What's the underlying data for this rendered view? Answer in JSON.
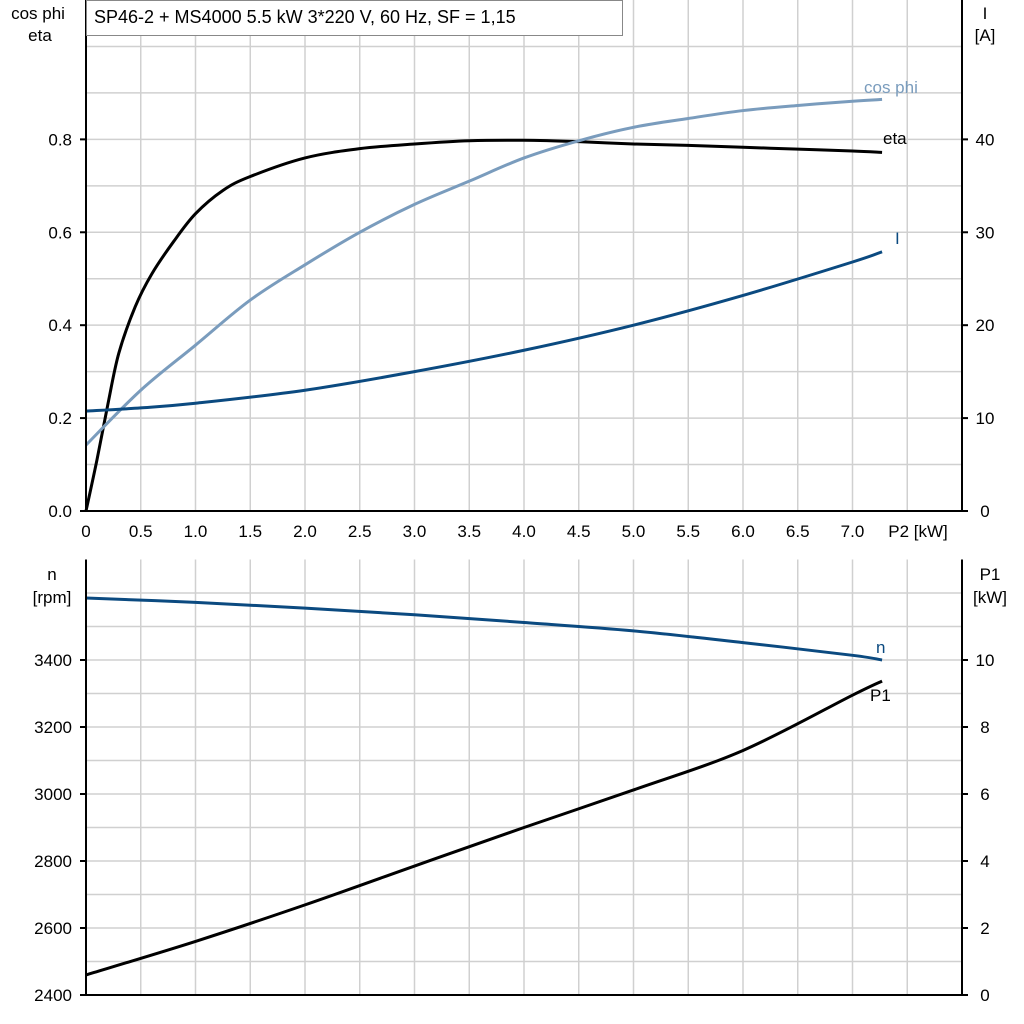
{
  "title": "SP46-2 + MS4000   5.5 kW   3*220 V, 60 Hz, SF = 1,15",
  "colors": {
    "eta": "#000000",
    "cos_phi": "#7a9cbd",
    "I": "#0b4a80",
    "n": "#0b4a80",
    "P1": "#000000",
    "grid": "#d0d0d0"
  },
  "chart_data": [
    {
      "type": "line",
      "xlabel": "P2 [kW]",
      "ylabel_left": [
        "cos phi",
        "eta"
      ],
      "ylabel_right": [
        "I",
        "[A]"
      ],
      "xlim": [
        0,
        8
      ],
      "ylim_left": [
        0,
        1.1
      ],
      "ylim_right": [
        0,
        55
      ],
      "grid": true,
      "x_ticks": [
        "0",
        "0.5",
        "1.0",
        "1.5",
        "2.0",
        "2.5",
        "3.0",
        "3.5",
        "4.0",
        "4.5",
        "5.0",
        "5.5",
        "6.0",
        "6.5",
        "7.0"
      ],
      "y_ticks_left": [
        "0.0",
        "0.2",
        "0.4",
        "0.6",
        "0.8"
      ],
      "y_ticks_right": [
        "0",
        "10",
        "20",
        "30",
        "40"
      ],
      "series": [
        {
          "name": "eta",
          "axis": "left",
          "x": [
            0,
            0.1,
            0.2,
            0.3,
            0.45,
            0.6,
            0.8,
            1.0,
            1.25,
            1.5,
            2.0,
            2.5,
            3.0,
            3.5,
            4.0,
            4.5,
            5.0,
            5.5,
            6.0,
            6.5,
            7.0,
            7.27
          ],
          "y": [
            0,
            0.11,
            0.23,
            0.34,
            0.44,
            0.51,
            0.58,
            0.64,
            0.69,
            0.72,
            0.76,
            0.78,
            0.79,
            0.797,
            0.798,
            0.795,
            0.79,
            0.787,
            0.783,
            0.779,
            0.775,
            0.772
          ]
        },
        {
          "name": "cos phi",
          "axis": "left",
          "x": [
            0,
            0.5,
            1.0,
            1.5,
            2.0,
            2.5,
            3.0,
            3.5,
            4.0,
            4.5,
            5.0,
            5.5,
            6.0,
            6.5,
            7.0,
            7.27
          ],
          "y": [
            0.142,
            0.26,
            0.357,
            0.454,
            0.53,
            0.6,
            0.66,
            0.71,
            0.76,
            0.797,
            0.826,
            0.845,
            0.862,
            0.873,
            0.882,
            0.886
          ]
        },
        {
          "name": "I",
          "axis": "right",
          "x": [
            0,
            0.5,
            1.0,
            2.0,
            3.0,
            4.0,
            5.0,
            6.0,
            7.0,
            7.27
          ],
          "y": [
            10.75,
            11.1,
            11.6,
            13.0,
            15.0,
            17.3,
            20.0,
            23.2,
            26.8,
            27.9
          ]
        }
      ]
    },
    {
      "type": "line",
      "xlim": [
        0,
        8
      ],
      "ylabel_left": [
        "n",
        "[rpm]"
      ],
      "ylabel_right": [
        "P1",
        "[kW]"
      ],
      "ylim_left": [
        2400,
        3700
      ],
      "ylim_right": [
        0,
        13
      ],
      "grid": true,
      "y_ticks_left": [
        "2400",
        "2600",
        "2800",
        "3000",
        "3200",
        "3400"
      ],
      "y_ticks_right": [
        "0",
        "2",
        "4",
        "6",
        "8",
        "10"
      ],
      "series": [
        {
          "name": "n",
          "axis": "left",
          "x": [
            0,
            1.0,
            2.0,
            3.0,
            4.0,
            5.0,
            6.0,
            7.0,
            7.27
          ],
          "y": [
            3585,
            3572,
            3555,
            3535,
            3512,
            3487,
            3452,
            3414,
            3400
          ]
        },
        {
          "name": "P1",
          "axis": "right",
          "x": [
            0,
            1.0,
            2.0,
            3.0,
            4.0,
            5.0,
            6.0,
            7.0,
            7.27
          ],
          "y": [
            0.6,
            1.6,
            2.69,
            3.85,
            5.0,
            6.12,
            7.3,
            8.95,
            9.37
          ]
        }
      ]
    }
  ]
}
